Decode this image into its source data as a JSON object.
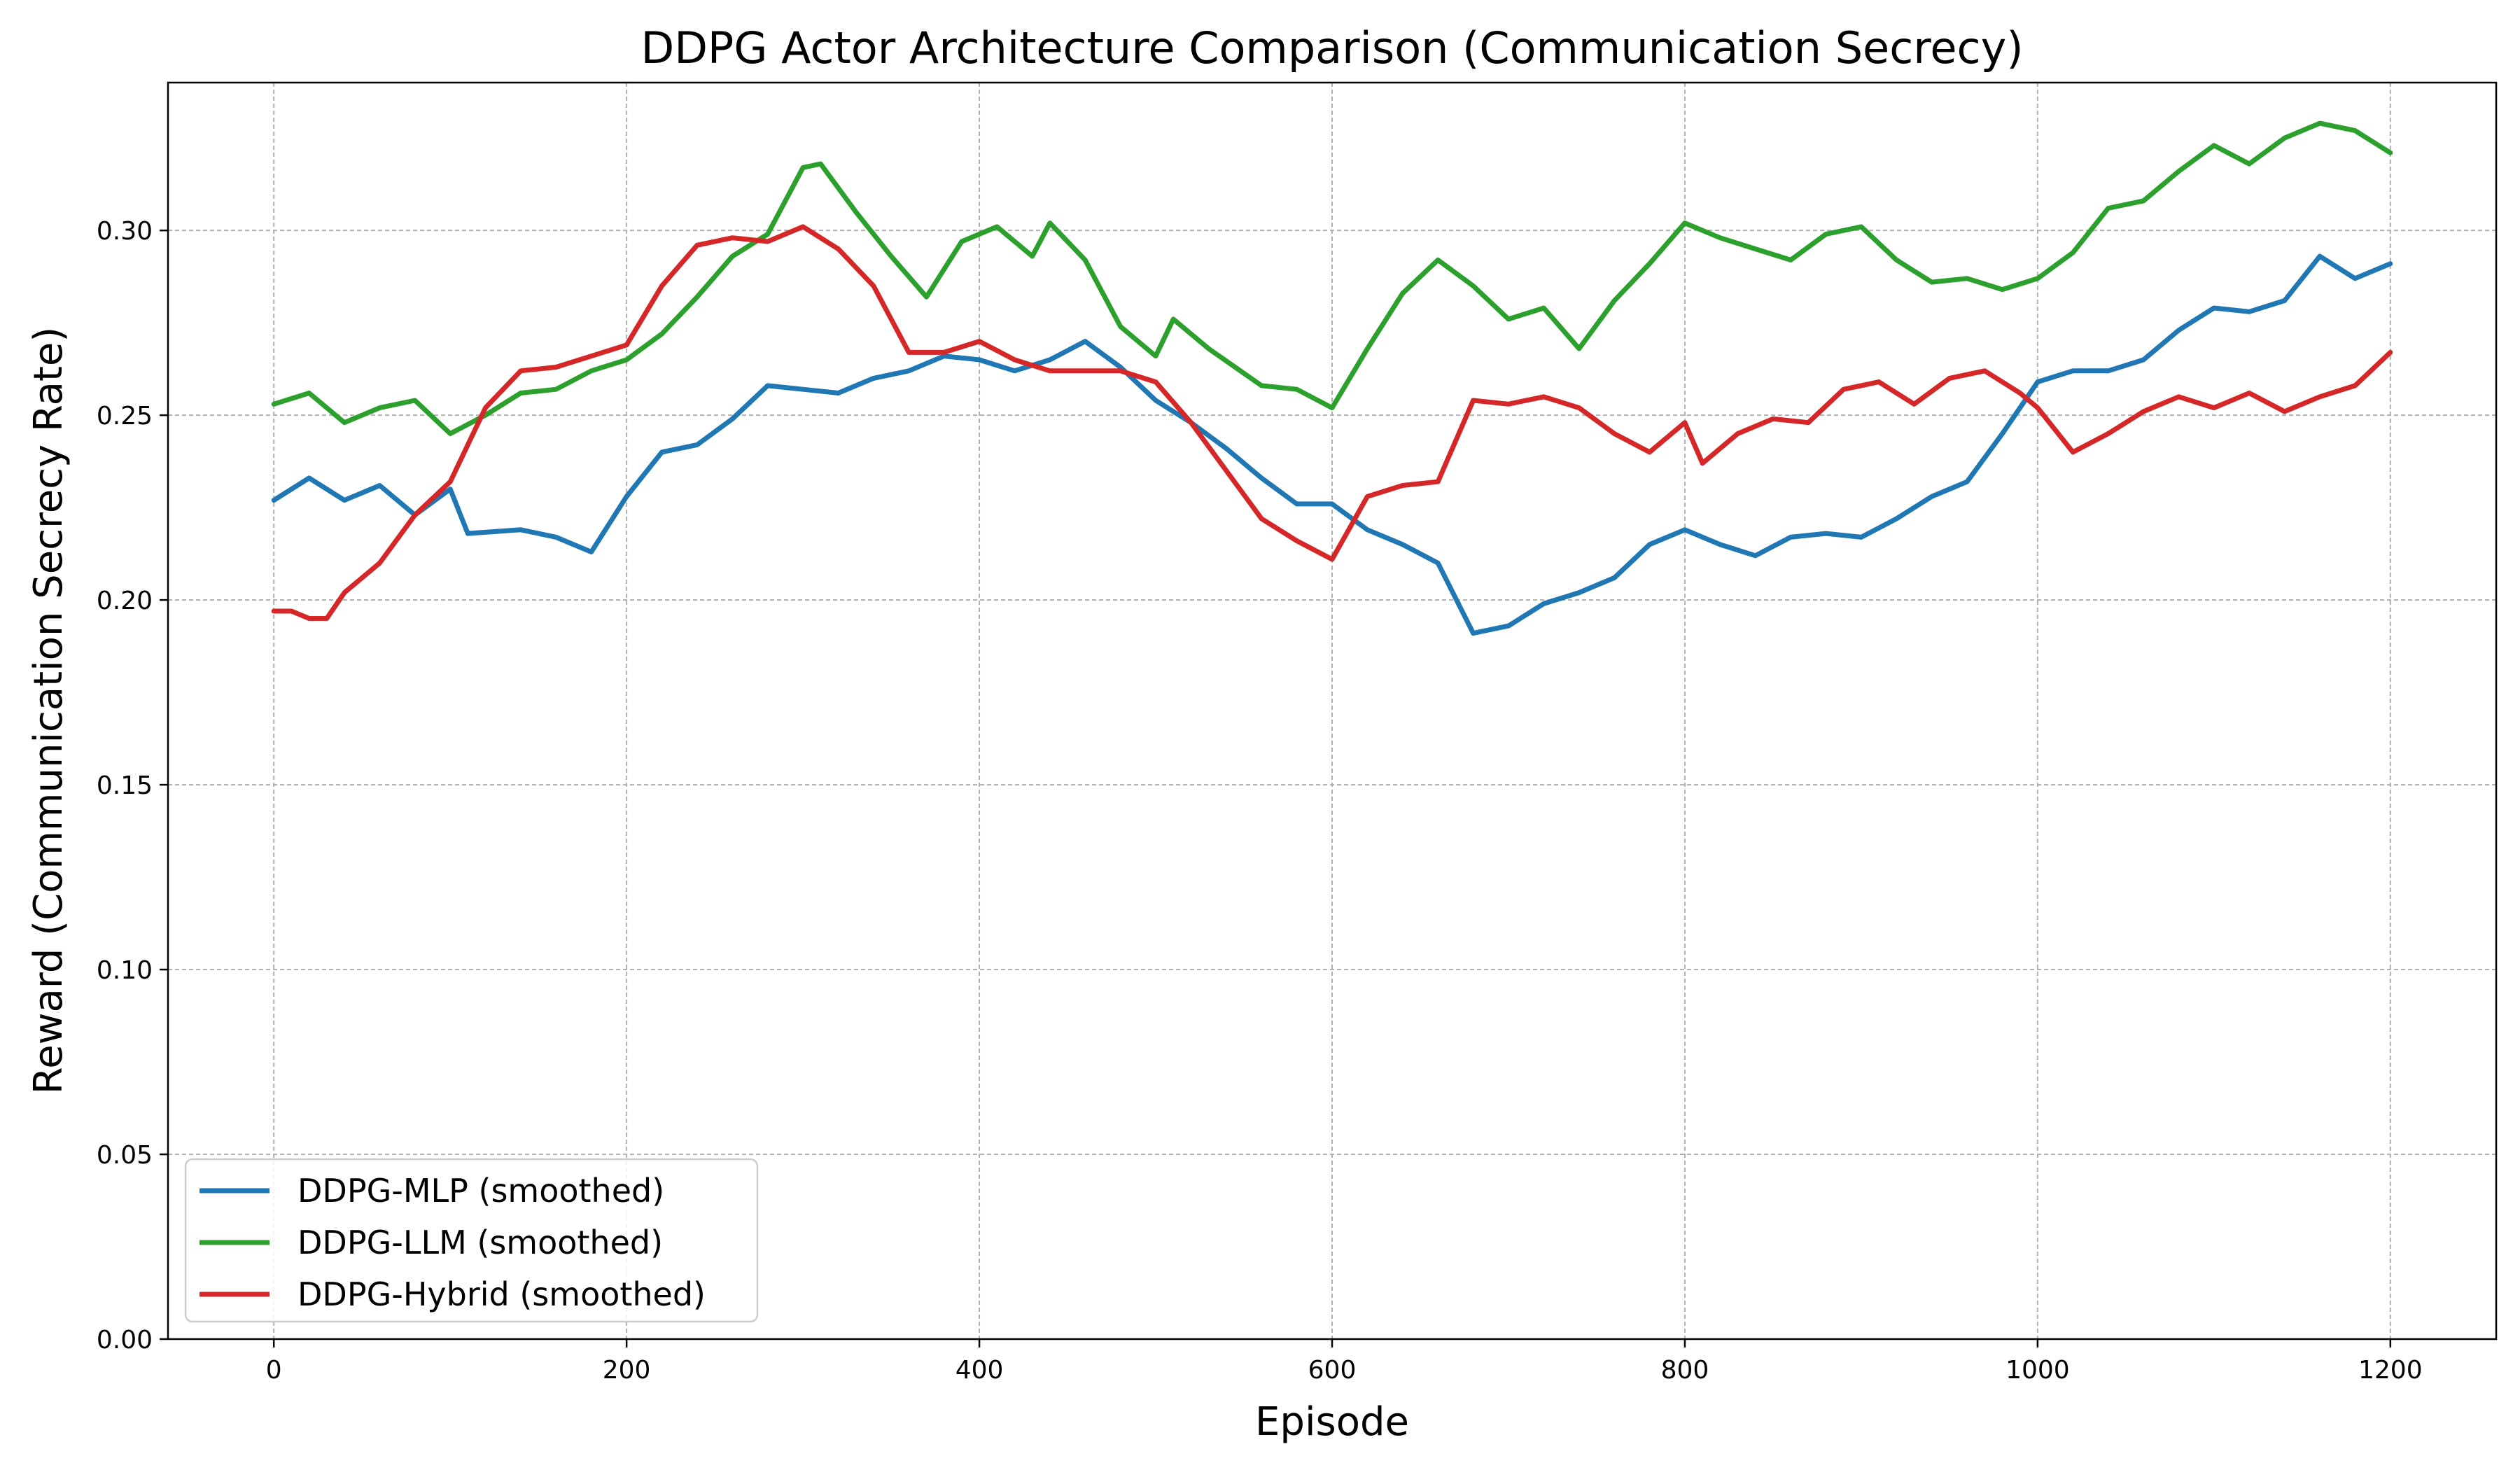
{
  "chart_data": {
    "type": "line",
    "title": "DDPG Actor Architecture Comparison (Communication Secrecy)",
    "xlabel": "Episode",
    "ylabel": "Reward (Communication Secrecy Rate)",
    "xlim": [
      -60,
      1260
    ],
    "ylim": [
      0.0,
      0.34
    ],
    "xticks": [
      0,
      200,
      400,
      600,
      800,
      1000,
      1200
    ],
    "yticks": [
      0.0,
      0.05,
      0.1,
      0.15,
      0.2,
      0.25,
      0.3
    ],
    "ytick_labels": [
      "0.00",
      "0.05",
      "0.10",
      "0.15",
      "0.20",
      "0.25",
      "0.30"
    ],
    "grid": true,
    "legend_position": "lower-left",
    "series": [
      {
        "name": "DDPG-MLP (smoothed)",
        "color": "#1f77b4",
        "x": [
          0,
          20,
          40,
          60,
          80,
          100,
          110,
          140,
          160,
          180,
          200,
          220,
          240,
          260,
          280,
          300,
          320,
          340,
          360,
          380,
          400,
          420,
          440,
          460,
          480,
          500,
          520,
          540,
          560,
          580,
          600,
          620,
          640,
          660,
          680,
          700,
          720,
          740,
          760,
          780,
          800,
          820,
          840,
          860,
          880,
          900,
          920,
          940,
          960,
          980,
          1000,
          1020,
          1040,
          1060,
          1080,
          1100,
          1120,
          1140,
          1160,
          1180,
          1200
        ],
        "y": [
          0.227,
          0.233,
          0.227,
          0.231,
          0.223,
          0.23,
          0.218,
          0.219,
          0.217,
          0.213,
          0.228,
          0.24,
          0.242,
          0.249,
          0.258,
          0.257,
          0.256,
          0.26,
          0.262,
          0.266,
          0.265,
          0.262,
          0.265,
          0.27,
          0.263,
          0.254,
          0.248,
          0.241,
          0.233,
          0.226,
          0.226,
          0.219,
          0.215,
          0.21,
          0.191,
          0.193,
          0.199,
          0.202,
          0.206,
          0.215,
          0.219,
          0.215,
          0.212,
          0.217,
          0.218,
          0.217,
          0.222,
          0.228,
          0.232,
          0.245,
          0.259,
          0.262,
          0.262,
          0.265,
          0.273,
          0.279,
          0.278,
          0.281,
          0.293,
          0.287,
          0.291
        ]
      },
      {
        "name": "DDPG-LLM (smoothed)",
        "color": "#2ca02c",
        "x": [
          0,
          20,
          40,
          60,
          80,
          100,
          120,
          140,
          160,
          180,
          200,
          220,
          240,
          260,
          280,
          300,
          310,
          330,
          350,
          370,
          390,
          410,
          430,
          440,
          460,
          480,
          500,
          510,
          530,
          560,
          580,
          600,
          620,
          640,
          660,
          680,
          700,
          720,
          740,
          760,
          780,
          800,
          820,
          840,
          860,
          880,
          900,
          920,
          940,
          960,
          980,
          1000,
          1020,
          1040,
          1060,
          1080,
          1100,
          1120,
          1140,
          1160,
          1180,
          1200
        ],
        "y": [
          0.253,
          0.256,
          0.248,
          0.252,
          0.254,
          0.245,
          0.25,
          0.256,
          0.257,
          0.262,
          0.265,
          0.272,
          0.282,
          0.293,
          0.299,
          0.317,
          0.318,
          0.305,
          0.293,
          0.282,
          0.297,
          0.301,
          0.293,
          0.302,
          0.292,
          0.274,
          0.266,
          0.276,
          0.268,
          0.258,
          0.257,
          0.252,
          0.268,
          0.283,
          0.292,
          0.285,
          0.276,
          0.279,
          0.268,
          0.281,
          0.291,
          0.302,
          0.298,
          0.295,
          0.292,
          0.299,
          0.301,
          0.292,
          0.286,
          0.287,
          0.284,
          0.287,
          0.294,
          0.306,
          0.308,
          0.316,
          0.323,
          0.318,
          0.325,
          0.329,
          0.327,
          0.321
        ]
      },
      {
        "name": "DDPG-Hybrid (smoothed)",
        "color": "#d62728",
        "x": [
          0,
          10,
          20,
          30,
          40,
          60,
          80,
          100,
          120,
          140,
          160,
          180,
          200,
          220,
          240,
          260,
          280,
          300,
          320,
          340,
          360,
          380,
          400,
          420,
          440,
          460,
          480,
          500,
          520,
          540,
          560,
          580,
          600,
          620,
          640,
          660,
          680,
          700,
          720,
          740,
          760,
          780,
          800,
          810,
          830,
          850,
          870,
          890,
          910,
          930,
          950,
          970,
          990,
          1000,
          1020,
          1040,
          1060,
          1080,
          1100,
          1120,
          1140,
          1160,
          1180,
          1200
        ],
        "y": [
          0.197,
          0.197,
          0.195,
          0.195,
          0.202,
          0.21,
          0.223,
          0.232,
          0.252,
          0.262,
          0.263,
          0.266,
          0.269,
          0.285,
          0.296,
          0.298,
          0.297,
          0.301,
          0.295,
          0.285,
          0.267,
          0.267,
          0.27,
          0.265,
          0.262,
          0.262,
          0.262,
          0.259,
          0.248,
          0.235,
          0.222,
          0.216,
          0.211,
          0.228,
          0.231,
          0.232,
          0.254,
          0.253,
          0.255,
          0.252,
          0.245,
          0.24,
          0.248,
          0.237,
          0.245,
          0.249,
          0.248,
          0.257,
          0.259,
          0.253,
          0.26,
          0.262,
          0.256,
          0.252,
          0.24,
          0.245,
          0.251,
          0.255,
          0.252,
          0.256,
          0.251,
          0.255,
          0.258,
          0.267
        ]
      }
    ]
  }
}
